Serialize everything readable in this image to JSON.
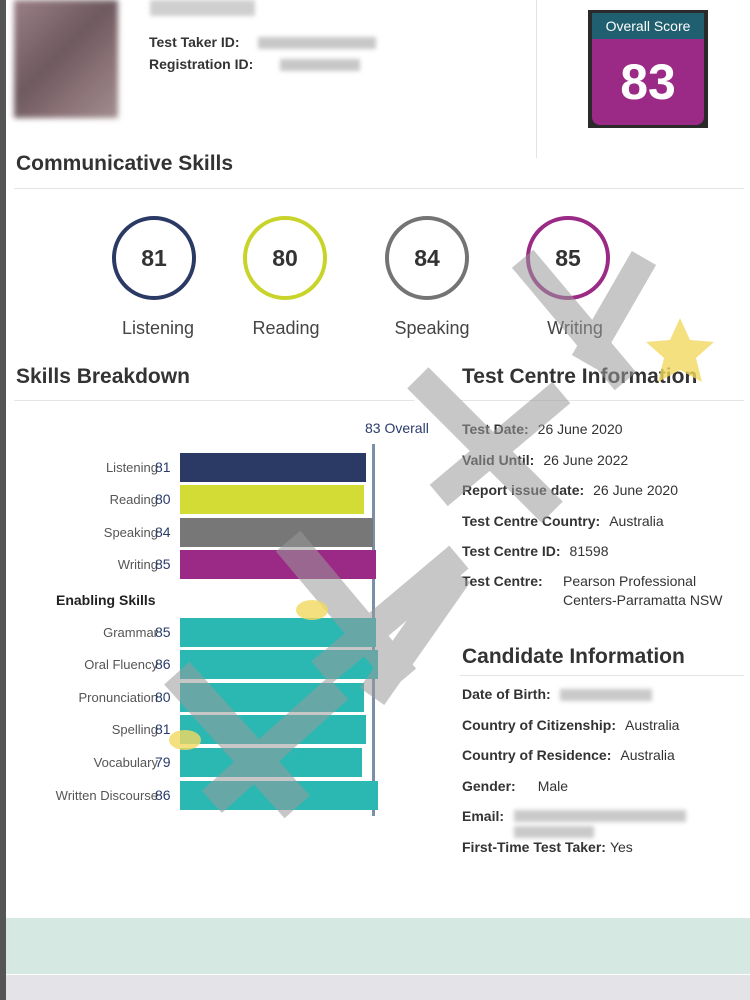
{
  "candidate_header": {
    "test_taker_id_label": "Test Taker ID:",
    "registration_id_label": "Registration ID:"
  },
  "overall_score": {
    "label": "Overall Score",
    "value": "83"
  },
  "communicative_skills": {
    "title": "Communicative Skills",
    "items": [
      {
        "name": "Listening",
        "score": "81",
        "color": "#2b3a64"
      },
      {
        "name": "Reading",
        "score": "80",
        "color": "#c8d42a"
      },
      {
        "name": "Speaking",
        "score": "84",
        "color": "#747474"
      },
      {
        "name": "Writing",
        "score": "85",
        "color": "#9b2a86"
      }
    ]
  },
  "skills_breakdown": {
    "title": "Skills Breakdown",
    "overall_label": "83 Overall",
    "overall_value": 83,
    "enabling_title": "Enabling Skills",
    "communicative": [
      {
        "name": "Listening",
        "score": 81,
        "color": "#2b3a64"
      },
      {
        "name": "Reading",
        "score": 80,
        "color": "#d2dc34"
      },
      {
        "name": "Speaking",
        "score": 84,
        "color": "#777777"
      },
      {
        "name": "Writing",
        "score": 85,
        "color": "#9b2a86"
      }
    ],
    "enabling": [
      {
        "name": "Grammar",
        "score": 85,
        "color": "#2bb8b3"
      },
      {
        "name": "Oral Fluency",
        "score": 86,
        "color": "#2bb8b3"
      },
      {
        "name": "Pronunciation",
        "score": 80,
        "color": "#2bb8b3"
      },
      {
        "name": "Spelling",
        "score": 81,
        "color": "#2bb8b3"
      },
      {
        "name": "Vocabulary",
        "score": 79,
        "color": "#2bb8b3"
      },
      {
        "name": "Written Discourse",
        "score": 86,
        "color": "#2bb8b3"
      }
    ]
  },
  "test_centre": {
    "title": "Test Centre Information",
    "test_date_label": "Test Date:",
    "test_date": "26 June 2020",
    "valid_until_label": "Valid Until:",
    "valid_until": "26 June 2022",
    "report_issue_label": "Report issue date:",
    "report_issue": "26 June 2020",
    "country_label": "Test Centre Country:",
    "country": "Australia",
    "centre_id_label": "Test Centre ID:",
    "centre_id": "81598",
    "centre_label": "Test Centre:",
    "centre_line1": "Pearson Professional",
    "centre_line2": "Centers-Parramatta NSW"
  },
  "candidate_info": {
    "title": "Candidate Information",
    "dob_label": "Date of Birth:",
    "citizenship_label": "Country of Citizenship:",
    "citizenship": "Australia",
    "residence_label": "Country of Residence:",
    "residence": "Australia",
    "gender_label": "Gender:",
    "gender": "Male",
    "email_label": "Email:",
    "first_time_label": "First-Time Test Taker:",
    "first_time": "Yes"
  }
}
